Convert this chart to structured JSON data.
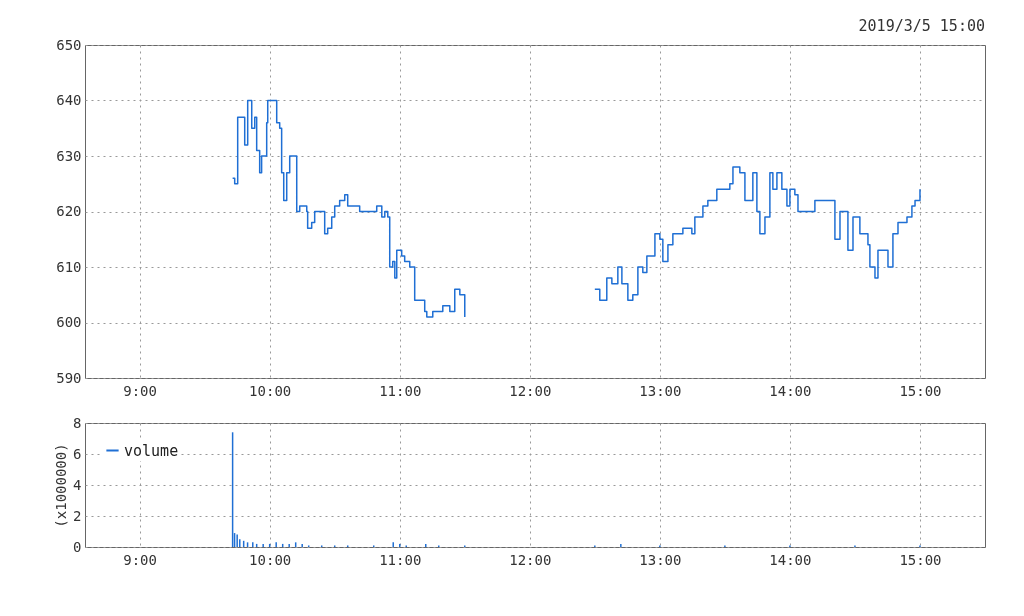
{
  "chart_data": [
    {
      "type": "step",
      "title": "2019/3/5 15:00",
      "xlim": [
        8.58,
        15.5
      ],
      "ylim": [
        590,
        650
      ],
      "yticks": [
        590,
        600,
        610,
        620,
        630,
        640,
        650
      ],
      "xticks": [
        {
          "value": 9,
          "label": "9:00"
        },
        {
          "value": 10,
          "label": "10:00"
        },
        {
          "value": 11,
          "label": "11:00"
        },
        {
          "value": 12,
          "label": "12:00"
        },
        {
          "value": 13,
          "label": "13:00"
        },
        {
          "value": 14,
          "label": "14:00"
        },
        {
          "value": 15,
          "label": "15:00"
        }
      ],
      "grid": true,
      "series": [
        {
          "color": "#1f6fd4",
          "x": [
            9.715,
            9.731,
            9.754,
            9.808,
            9.831,
            9.862,
            9.885,
            9.9,
            9.923,
            9.938,
            9.977,
            9.985,
            10.038,
            10.054,
            10.077,
            10.092,
            10.108,
            10.131,
            10.154,
            10.192,
            10.208,
            10.231,
            10.285,
            10.292,
            10.323,
            10.346,
            10.4,
            10.423,
            10.446,
            10.477,
            10.5,
            10.538,
            10.577,
            10.6,
            10.654,
            10.692,
            10.746,
            10.792,
            10.823,
            10.862,
            10.885,
            10.908,
            10.923,
            10.946,
            10.962,
            10.977,
            11.015,
            11.038,
            11.077,
            11.115,
            11.154,
            11.192,
            11.208,
            11.254,
            11.308,
            11.331,
            11.385,
            11.423,
            11.462,
            11.5,
            12.0,
            12.5,
            12.538,
            12.592,
            12.631,
            12.677,
            12.708,
            12.754,
            12.792,
            12.831,
            12.869,
            12.9,
            12.962,
            13.0,
            13.023,
            13.062,
            13.1,
            13.177,
            13.246,
            13.269,
            13.331,
            13.369,
            13.438,
            13.485,
            13.538,
            13.562,
            13.615,
            13.654,
            13.708,
            13.715,
            13.746,
            13.769,
            13.808,
            13.846,
            13.869,
            13.9,
            13.938,
            13.977,
            14.0,
            14.038,
            14.062,
            14.138,
            14.192,
            14.285,
            14.346,
            14.385,
            14.446,
            14.485,
            14.538,
            14.6,
            14.615,
            14.654,
            14.677,
            14.731,
            14.754,
            14.792,
            14.831,
            14.9,
            14.938,
            14.962,
            15.0
          ],
          "values": [
            626,
            625,
            637,
            632,
            640,
            635,
            637,
            631,
            627,
            630,
            636,
            640,
            640,
            636,
            635,
            627,
            622,
            627,
            630,
            630,
            620,
            621,
            620,
            617,
            618,
            620,
            620,
            616,
            617,
            619,
            621,
            622,
            623,
            621,
            621,
            620,
            620,
            620,
            621,
            619,
            620,
            619,
            610,
            611,
            608,
            613,
            612,
            611,
            610,
            604,
            604,
            602,
            601,
            602,
            602,
            603,
            602,
            606,
            605,
            601,
            null,
            606,
            604,
            608,
            607,
            610,
            607,
            604,
            605,
            610,
            609,
            612,
            616,
            615,
            611,
            614,
            616,
            617,
            616,
            619,
            621,
            622,
            624,
            624,
            625,
            628,
            627,
            622,
            622,
            627,
            620,
            616,
            619,
            627,
            624,
            627,
            624,
            621,
            624,
            623,
            620,
            620,
            622,
            622,
            615,
            620,
            613,
            619,
            616,
            614,
            610,
            608,
            613,
            613,
            610,
            616,
            618,
            619,
            621,
            622,
            624
          ]
        }
      ]
    },
    {
      "type": "bar",
      "ylabel": "(x1000000)",
      "xlim": [
        8.58,
        15.5
      ],
      "ylim": [
        0,
        8
      ],
      "yticks": [
        0,
        2,
        4,
        6,
        8
      ],
      "xticks": [
        {
          "value": 9,
          "label": "9:00"
        },
        {
          "value": 10,
          "label": "10:00"
        },
        {
          "value": 11,
          "label": "11:00"
        },
        {
          "value": 12,
          "label": "12:00"
        },
        {
          "value": 13,
          "label": "13:00"
        },
        {
          "value": 14,
          "label": "14:00"
        },
        {
          "value": 15,
          "label": "15:00"
        }
      ],
      "grid": true,
      "legend": "top left",
      "series": [
        {
          "name": "volume",
          "color": "#1f6fd4",
          "x": [
            9.715,
            9.73,
            9.75,
            9.77,
            9.8,
            9.83,
            9.87,
            9.9,
            9.95,
            10.0,
            10.05,
            10.1,
            10.15,
            10.2,
            10.25,
            10.3,
            10.4,
            10.5,
            10.6,
            10.8,
            10.95,
            11.0,
            11.05,
            11.2,
            11.3,
            11.5,
            12.5,
            12.7,
            13.0,
            13.5,
            14.0,
            14.5,
            15.0
          ],
          "values": [
            7.4,
            0.9,
            0.8,
            0.5,
            0.4,
            0.3,
            0.3,
            0.2,
            0.2,
            0.2,
            0.3,
            0.2,
            0.2,
            0.3,
            0.2,
            0.1,
            0.1,
            0.1,
            0.1,
            0.1,
            0.3,
            0.2,
            0.1,
            0.2,
            0.1,
            0.1,
            0.1,
            0.2,
            0.1,
            0.1,
            0.1,
            0.1,
            0.1
          ]
        }
      ]
    }
  ]
}
